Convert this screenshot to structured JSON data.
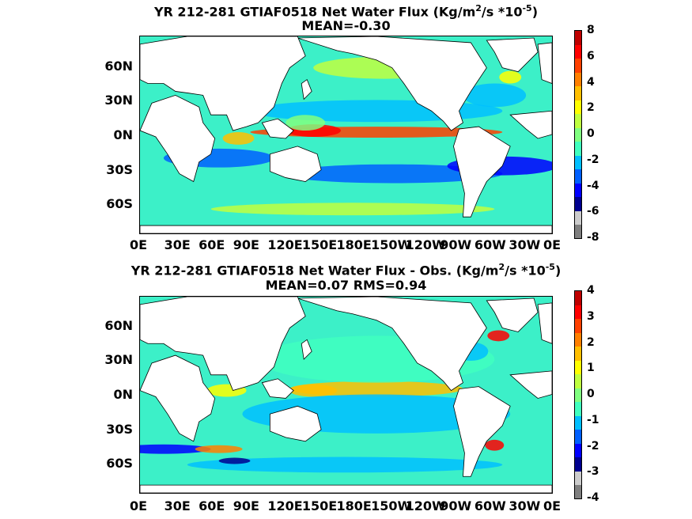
{
  "chart_data": [
    {
      "type": "heatmap",
      "title_html_parts": [
        "YR 212-281 GTIAF0518  Net Water Flux (Kg/m",
        "2",
        "/s *10",
        "-5",
        ")"
      ],
      "subtitle": "MEAN=-0.30",
      "y_ticks": [
        "60N",
        "30N",
        "0N",
        "30S",
        "60S"
      ],
      "x_ticks": [
        "0E",
        "30E",
        "60E",
        "90E",
        "120E",
        "150E",
        "180E",
        "150W",
        "120W",
        "90W",
        "60W",
        "30W",
        "0E"
      ],
      "colorbar_ticks": [
        "8",
        "6",
        "4",
        "2",
        "0",
        "-2",
        "-4",
        "-6",
        "-8"
      ],
      "colorbar_range": [
        -8,
        8
      ]
    },
    {
      "type": "heatmap",
      "title_html_parts": [
        "YR 212-281 GTIAF0518  Net Water Flux - Obs. (Kg/m",
        "2",
        "/s *10",
        "-5",
        ")"
      ],
      "subtitle": "MEAN=0.07 RMS=0.94",
      "y_ticks": [
        "60N",
        "30N",
        "0N",
        "30S",
        "60S"
      ],
      "x_ticks": [
        "0E",
        "30E",
        "60E",
        "90E",
        "120E",
        "150E",
        "180E",
        "150W",
        "120W",
        "90W",
        "60W",
        "30W",
        "0E"
      ],
      "colorbar_ticks": [
        "4",
        "3",
        "2",
        "1",
        "0",
        "-1",
        "-2",
        "-3",
        "-4"
      ],
      "colorbar_range": [
        -4,
        4
      ]
    }
  ],
  "colors": {
    "colormap": [
      "#7f7f7f",
      "#cccccc",
      "#00008f",
      "#0000ff",
      "#0060ff",
      "#00bfff",
      "#40ffbf",
      "#80ff80",
      "#bfff40",
      "#ffff00",
      "#ffbf00",
      "#ff8000",
      "#ff4000",
      "#ff0000",
      "#bf0000"
    ],
    "ocean_base": "#3cf0c8",
    "land": "#ffffff"
  }
}
